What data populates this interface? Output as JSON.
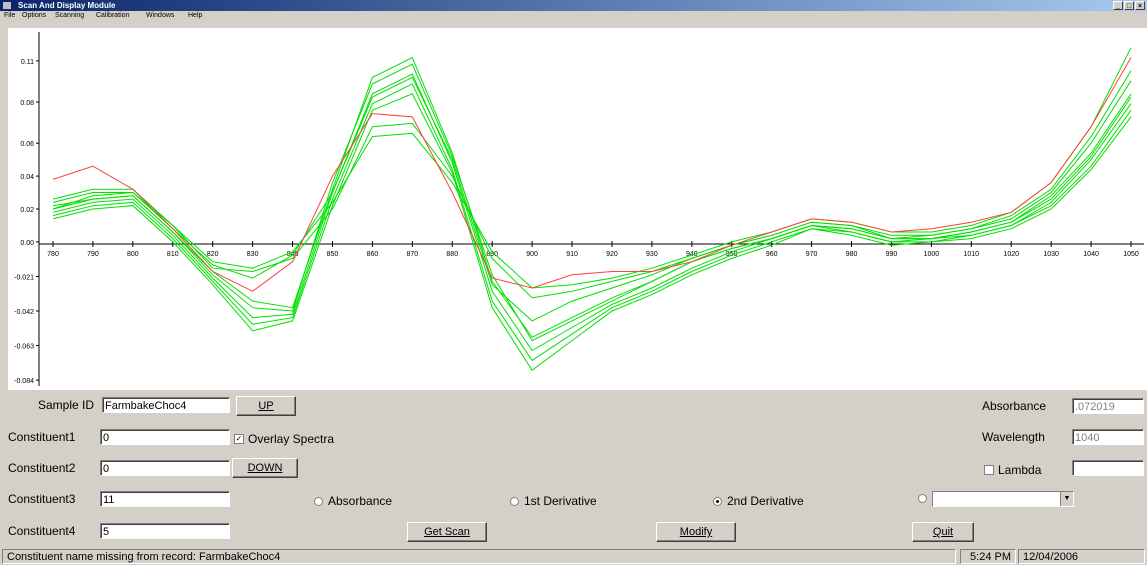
{
  "window": {
    "title": "Scan And Display Module",
    "controls": [
      "_",
      "□",
      "×"
    ]
  },
  "menu": [
    {
      "label": "File"
    },
    {
      "label": "Options"
    },
    {
      "label": "Scanning"
    },
    {
      "label": "Calibration"
    },
    {
      "label": "Windows"
    },
    {
      "label": "Help"
    }
  ],
  "chart_data": {
    "type": "line",
    "x_ticks": [
      "780",
      "790",
      "800",
      "810",
      "820",
      "830",
      "840",
      "850",
      "860",
      "870",
      "880",
      "890",
      "900",
      "910",
      "920",
      "930",
      "940",
      "950",
      "960",
      "970",
      "980",
      "990",
      "1000",
      "1010",
      "1020",
      "1030",
      "1040",
      "1050"
    ],
    "y_ticks": [
      "0.11",
      "0.08",
      "0.06",
      "0.04",
      "0.02",
      "0.00",
      "-0.021",
      "-0.042",
      "-0.063",
      "-0.084"
    ],
    "ylim": [
      -0.09,
      0.13
    ],
    "x": [
      780,
      790,
      800,
      810,
      820,
      830,
      840,
      850,
      860,
      870,
      880,
      890,
      900,
      910,
      920,
      930,
      940,
      950,
      960,
      970,
      980,
      990,
      1000,
      1010,
      1020,
      1030,
      1040,
      1050
    ],
    "series": [
      {
        "color": "#ff4040",
        "values": [
          0.038,
          0.046,
          0.032,
          0.008,
          -0.018,
          -0.03,
          -0.012,
          0.04,
          0.078,
          0.076,
          0.03,
          -0.022,
          -0.028,
          -0.02,
          -0.018,
          -0.018,
          -0.012,
          -0.002,
          0.006,
          0.014,
          0.012,
          0.006,
          0.008,
          0.012,
          0.018,
          0.036,
          0.07,
          0.112
        ]
      },
      {
        "color": "#00e000",
        "values": [
          0.02,
          0.028,
          0.03,
          0.008,
          -0.014,
          -0.022,
          -0.008,
          0.03,
          0.088,
          0.1,
          0.05,
          -0.026,
          -0.048,
          -0.036,
          -0.028,
          -0.02,
          -0.01,
          -0.002,
          0.004,
          0.012,
          0.01,
          0.002,
          0.004,
          0.008,
          0.014,
          0.03,
          0.06,
          0.098
        ]
      },
      {
        "color": "#00e000",
        "values": [
          0.022,
          0.026,
          0.028,
          0.006,
          -0.02,
          -0.04,
          -0.042,
          0.036,
          0.096,
          0.108,
          0.052,
          -0.02,
          -0.06,
          -0.048,
          -0.036,
          -0.024,
          -0.012,
          -0.004,
          0.002,
          0.01,
          0.008,
          0.002,
          0.002,
          0.006,
          0.012,
          0.028,
          0.054,
          0.09
        ]
      },
      {
        "color": "#00e000",
        "values": [
          0.018,
          0.024,
          0.026,
          0.004,
          -0.022,
          -0.046,
          -0.044,
          0.03,
          0.09,
          0.102,
          0.048,
          -0.03,
          -0.066,
          -0.052,
          -0.038,
          -0.028,
          -0.016,
          -0.006,
          0.002,
          0.01,
          0.006,
          0.0,
          0.002,
          0.004,
          0.01,
          0.024,
          0.05,
          0.084
        ]
      },
      {
        "color": "#00e000",
        "values": [
          0.024,
          0.03,
          0.03,
          0.01,
          -0.016,
          -0.018,
          -0.01,
          0.02,
          0.07,
          0.072,
          0.04,
          -0.01,
          -0.034,
          -0.03,
          -0.024,
          -0.018,
          -0.01,
          -0.002,
          0.004,
          0.012,
          0.01,
          0.004,
          0.004,
          0.008,
          0.016,
          0.032,
          0.064,
          0.104
        ]
      },
      {
        "color": "#00e000",
        "values": [
          0.016,
          0.022,
          0.024,
          0.002,
          -0.024,
          -0.05,
          -0.046,
          0.026,
          0.084,
          0.096,
          0.044,
          -0.036,
          -0.072,
          -0.056,
          -0.04,
          -0.03,
          -0.018,
          -0.008,
          0.0,
          0.008,
          0.006,
          0.0,
          0.0,
          0.004,
          0.01,
          0.022,
          0.046,
          0.08
        ]
      },
      {
        "color": "#00e000",
        "values": [
          0.026,
          0.032,
          0.032,
          0.01,
          -0.012,
          -0.016,
          -0.006,
          0.024,
          0.064,
          0.066,
          0.036,
          -0.006,
          -0.028,
          -0.026,
          -0.022,
          -0.016,
          -0.008,
          0.0,
          0.006,
          0.014,
          0.012,
          0.006,
          0.006,
          0.01,
          0.018,
          0.036,
          0.07,
          0.118
        ]
      },
      {
        "color": "#00e000",
        "values": [
          0.02,
          0.026,
          0.028,
          0.006,
          -0.018,
          -0.036,
          -0.04,
          0.032,
          0.1,
          0.112,
          0.054,
          -0.024,
          -0.058,
          -0.046,
          -0.034,
          -0.024,
          -0.012,
          -0.004,
          0.002,
          0.01,
          0.008,
          0.002,
          0.002,
          0.006,
          0.012,
          0.026,
          0.052,
          0.088
        ]
      },
      {
        "color": "#00e000",
        "values": [
          0.014,
          0.02,
          0.022,
          0.0,
          -0.026,
          -0.054,
          -0.048,
          0.022,
          0.08,
          0.09,
          0.042,
          -0.04,
          -0.078,
          -0.06,
          -0.042,
          -0.032,
          -0.02,
          -0.01,
          -0.002,
          0.008,
          0.004,
          -0.002,
          0.0,
          0.002,
          0.008,
          0.02,
          0.044,
          0.076
        ]
      }
    ]
  },
  "controls": {
    "sample_id_label": "Sample ID",
    "sample_id_value": "FarmbakeChoc4",
    "up_label": "UP",
    "down_label": "DOWN",
    "constituent1_label": "Constituent1",
    "constituent1_value": "0",
    "constituent2_label": "Constituent2",
    "constituent2_value": "0",
    "constituent3_label": "Constituent3",
    "constituent3_value": "11",
    "constituent4_label": "Constituent4",
    "constituent4_value": "5",
    "overlay_label": "Overlay Spectra",
    "overlay_checked": true,
    "absorbance_label": "Absorbance",
    "absorbance_value": ".072019",
    "wavelength_label": "Wavelength",
    "wavelength_value": "1040",
    "lambda_label": "Lambda",
    "lambda_value": "",
    "radio_absorbance": "Absorbance",
    "radio_1st": "1st Derivative",
    "radio_2nd": "2nd Derivative",
    "radio_selected": "2nd Derivative",
    "get_scan_label": "Get Scan",
    "modify_label": "Modify",
    "quit_label": "Quit"
  },
  "status": {
    "message": "Constituent name missing from record: FarmbakeChoc4",
    "time": "5:24 PM",
    "date": "12/04/2006"
  }
}
